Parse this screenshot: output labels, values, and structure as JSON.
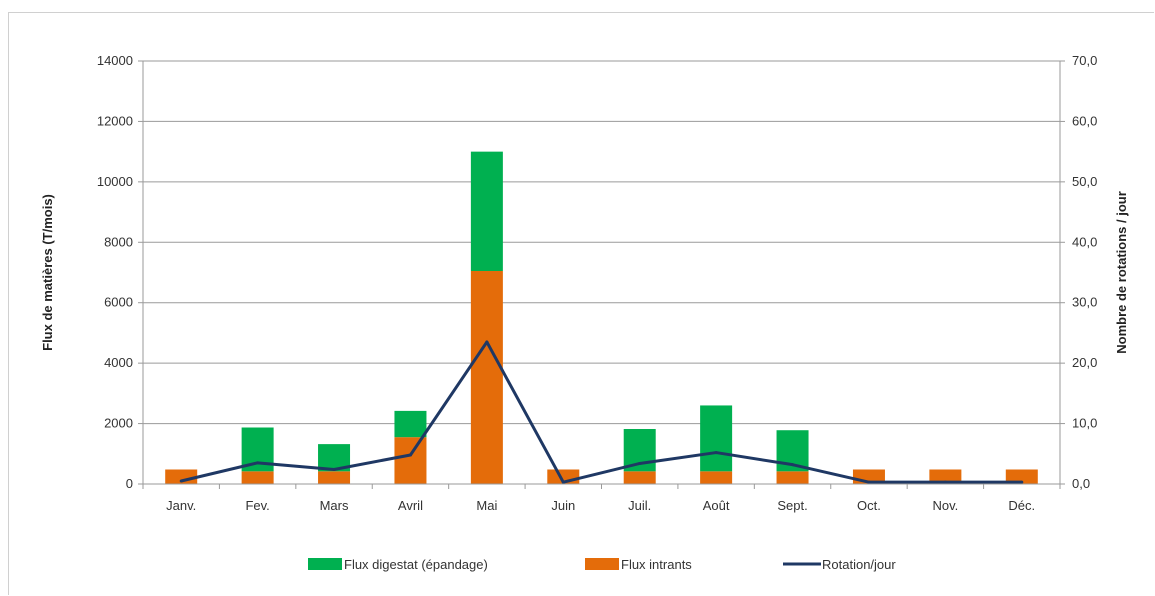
{
  "chart_data": {
    "type": "bar",
    "stacked": true,
    "categories": [
      "Janv.",
      "Fev.",
      "Mars",
      "Avril",
      "Mai",
      "Juin",
      "Juil.",
      "Août",
      "Sept.",
      "Oct.",
      "Nov.",
      "Déc."
    ],
    "series": [
      {
        "name": "Flux intrants",
        "kind": "bar",
        "color": "#e46c0a",
        "values": [
          480,
          420,
          420,
          1550,
          7050,
          480,
          420,
          420,
          420,
          480,
          480,
          480
        ]
      },
      {
        "name": "Flux digestat (épandage)",
        "kind": "bar",
        "color": "#00b050",
        "values": [
          0,
          1450,
          900,
          870,
          3950,
          0,
          1400,
          2180,
          1360,
          0,
          0,
          0
        ]
      },
      {
        "name": "Rotation/jour",
        "kind": "line",
        "axis": "right",
        "color": "#1f3864",
        "values": [
          0.5,
          3.5,
          2.4,
          4.8,
          23.5,
          0.3,
          3.4,
          5.2,
          3.2,
          0.3,
          0.3,
          0.3
        ]
      }
    ],
    "ylabel": "Flux de matières (T/mois)",
    "y2label": "Nombre de rotations / jour",
    "ylim": [
      0,
      14000
    ],
    "y2lim": [
      0,
      70
    ],
    "yticks": [
      "0",
      "2000",
      "4000",
      "6000",
      "8000",
      "10000",
      "12000",
      "14000"
    ],
    "y2ticks": [
      "0,0",
      "10,0",
      "20,0",
      "30,0",
      "40,0",
      "50,0",
      "60,0",
      "70,0"
    ],
    "grid": true,
    "legend_position": "bottom"
  }
}
